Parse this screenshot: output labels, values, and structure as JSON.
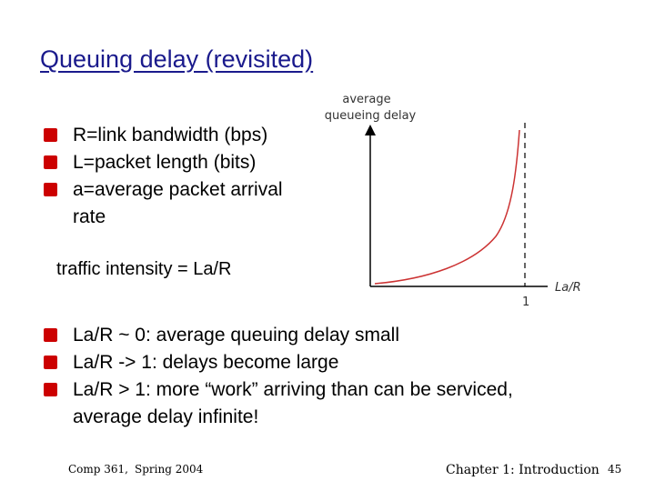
{
  "slide": {
    "title": "Queuing delay (revisited)",
    "bullets_top": [
      {
        "text": "R=link bandwidth (bps)"
      },
      {
        "text": "L=packet length (bits)"
      },
      {
        "text": "a=average packet arrival rate"
      }
    ],
    "traffic_intensity": "traffic intensity = La/R",
    "bullets_bottom": [
      {
        "text": "La/R ~ 0: average queuing delay small"
      },
      {
        "text": "La/R -> 1: delays become large"
      },
      {
        "text": "La/R > 1: more “work” arriving than can be serviced, average delay infinite!"
      }
    ]
  },
  "graph": {
    "y_label_line1": "average",
    "y_label_line2": "queueing delay",
    "x_label": "La/R",
    "x_tick": "1",
    "curve_color": "#cc3333"
  },
  "footer": {
    "course": "Comp 361,",
    "term": "Spring 2004",
    "chapter": "Chapter 1: Introduction",
    "page": "45"
  },
  "colors": {
    "title": "#1a1a8c",
    "bullet": "#cc0000"
  }
}
